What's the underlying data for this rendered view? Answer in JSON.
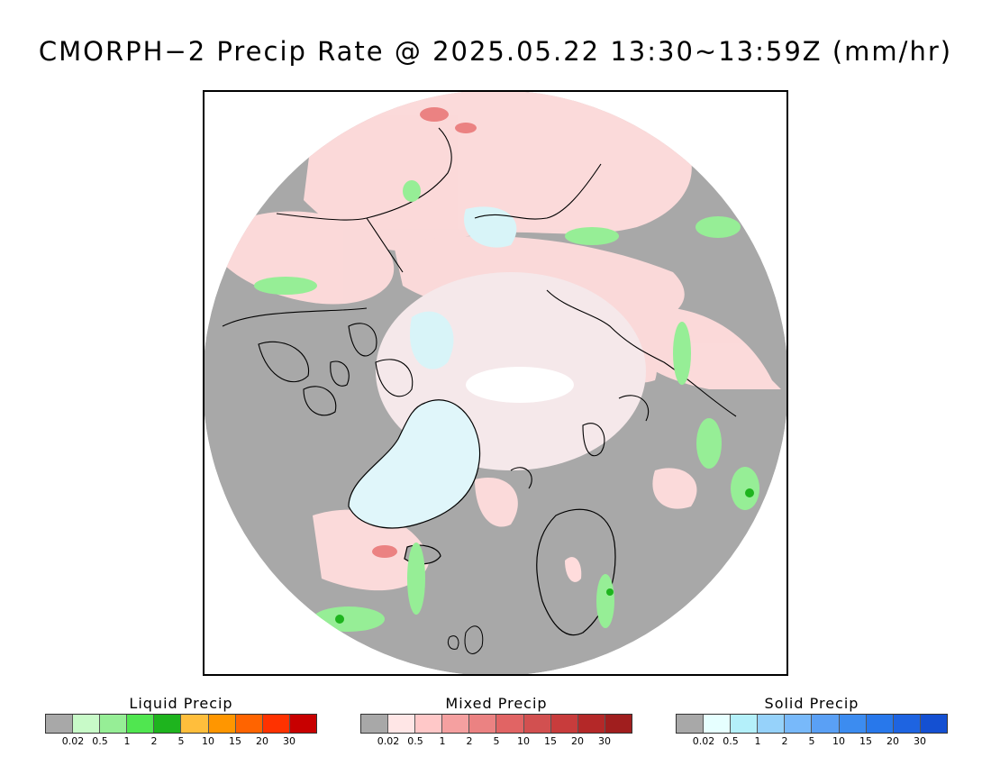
{
  "title": "CMORPH−2 Precip Rate @ 2025.05.22 13:30~13:59Z (mm/hr)",
  "legends": [
    {
      "title": "Liquid Precip",
      "colors": [
        "#a8a8a8",
        "#c8fac8",
        "#96ee96",
        "#50e650",
        "#1eb41e",
        "#ffbe3c",
        "#ff9600",
        "#ff6400",
        "#ff3200",
        "#c80000"
      ],
      "ticks": [
        "0.02",
        "0.5",
        "1",
        "2",
        "5",
        "10",
        "15",
        "20",
        "30"
      ]
    },
    {
      "title": "Mixed Precip",
      "colors": [
        "#a8a8a8",
        "#ffe6e6",
        "#ffc8c8",
        "#f5a0a0",
        "#eb8282",
        "#e16464",
        "#d25050",
        "#c83c3c",
        "#b42828",
        "#a01e1e"
      ],
      "ticks": [
        "0.02",
        "0.5",
        "1",
        "2",
        "5",
        "10",
        "15",
        "20",
        "30"
      ]
    },
    {
      "title": "Solid Precip",
      "colors": [
        "#a8a8a8",
        "#e6ffff",
        "#b4f0fa",
        "#96d2fa",
        "#78b9fa",
        "#5aa0f5",
        "#3c8cf0",
        "#2878eb",
        "#1e64e1",
        "#1450d2"
      ],
      "ticks": [
        "0.02",
        "0.5",
        "1",
        "2",
        "5",
        "10",
        "15",
        "20",
        "30"
      ]
    }
  ]
}
